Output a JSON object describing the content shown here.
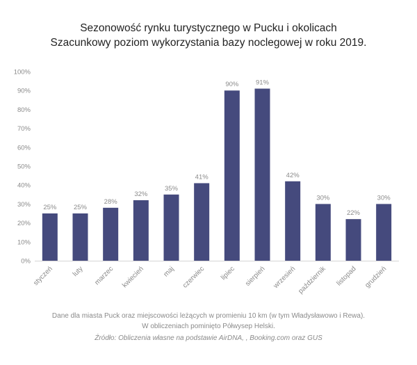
{
  "chart_data": {
    "type": "bar",
    "title": "Sezonowość rynku turystycznego w Pucku i okolicach",
    "subtitle": "Szacunkowy poziom wykorzystania bazy noclegowej w roku 2019.",
    "categories": [
      "styczeń",
      "luty",
      "marzec",
      "kwiecień",
      "maj",
      "czerwiec",
      "lipiec",
      "sierpień",
      "wrzesień",
      "październik",
      "listopad",
      "grudzień"
    ],
    "values": [
      25,
      25,
      28,
      32,
      35,
      41,
      90,
      91,
      42,
      30,
      22,
      30
    ],
    "data_labels": [
      "25%",
      "25%",
      "28%",
      "32%",
      "35%",
      "41%",
      "90%",
      "91%",
      "42%",
      "30%",
      "22%",
      "30%"
    ],
    "y_ticks": [
      "0%",
      "10%",
      "20%",
      "30%",
      "40%",
      "50%",
      "60%",
      "70%",
      "80%",
      "90%",
      "100%"
    ],
    "ylim": [
      0,
      100
    ],
    "xlabel": "",
    "ylabel": "",
    "grid": false,
    "bar_color": "#454a7d"
  },
  "notes": {
    "line1": "Dane dla miasta Puck oraz miejscowości leżących w promieniu 10 km (w tym Władysławowo i Rewa).",
    "line2": "W obliczeniach pominięto Półwysep Helski.",
    "source": "Źródło: Obliczenia własne na podstawie AirDNA, , Booking.com oraz GUS"
  }
}
